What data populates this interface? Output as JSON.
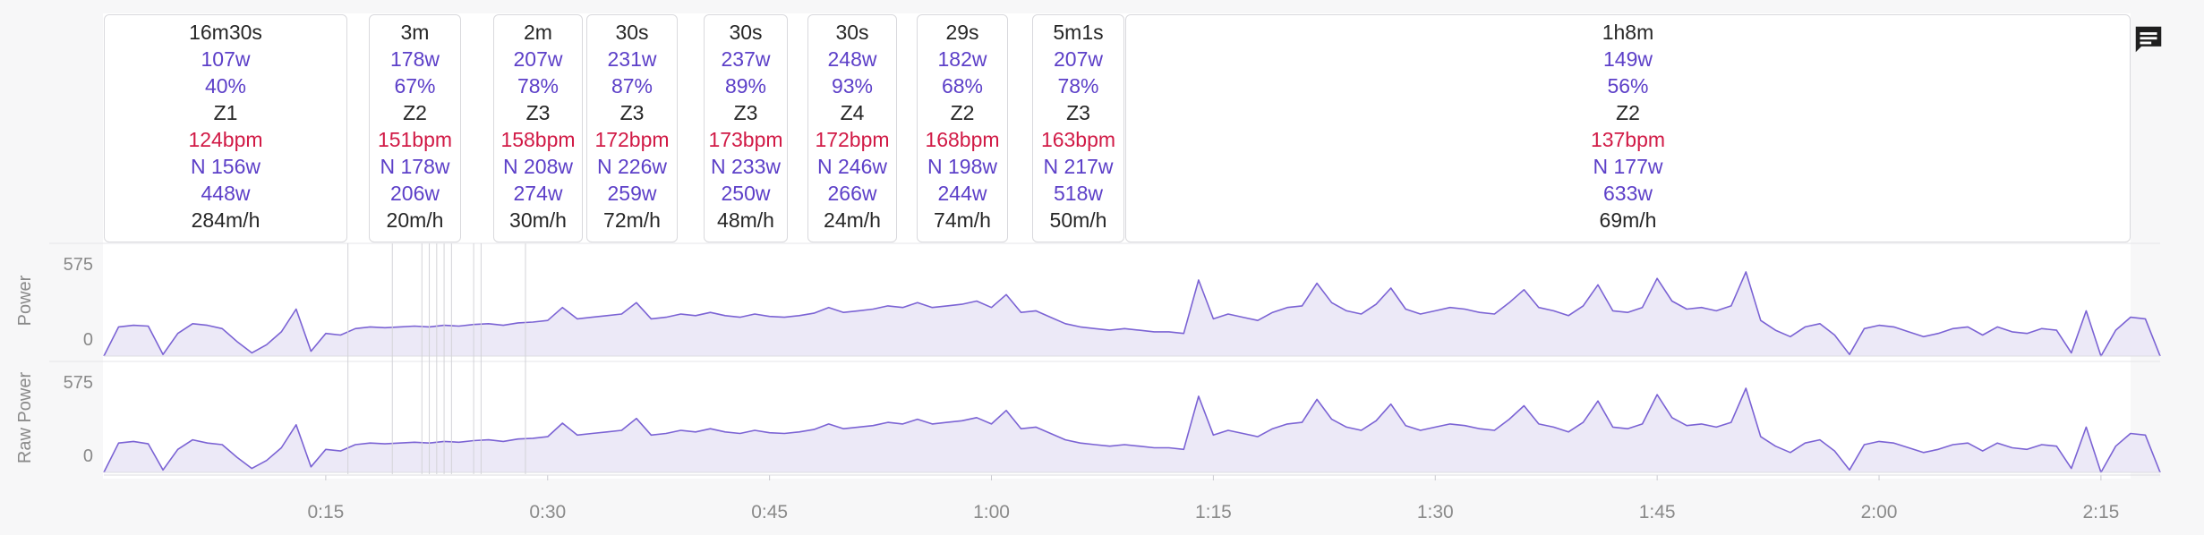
{
  "colors": {
    "line": "#7b63d4",
    "fill": "#ece9f7",
    "watts": "#5c3fc8",
    "heart_rate": "#d11a46",
    "text": "#262626",
    "axis_text": "#8a8a8a"
  },
  "comment_button": {
    "icon": "comment-icon"
  },
  "intervals": [
    {
      "duration": "16m30s",
      "avg_power": "107w",
      "percent_ftp": "40%",
      "zone": "Z1",
      "heart_rate": "124bpm",
      "normalized_power": "N 156w",
      "max_power": "448w",
      "climb_rate": "284m/h"
    },
    {
      "duration": "3m",
      "avg_power": "178w",
      "percent_ftp": "67%",
      "zone": "Z2",
      "heart_rate": "151bpm",
      "normalized_power": "N 178w",
      "max_power": "206w",
      "climb_rate": "20m/h"
    },
    {
      "duration": "2m",
      "avg_power": "207w",
      "percent_ftp": "78%",
      "zone": "Z3",
      "heart_rate": "158bpm",
      "normalized_power": "N 208w",
      "max_power": "274w",
      "climb_rate": "30m/h"
    },
    {
      "duration": "30s",
      "avg_power": "231w",
      "percent_ftp": "87%",
      "zone": "Z3",
      "heart_rate": "172bpm",
      "normalized_power": "N 226w",
      "max_power": "259w",
      "climb_rate": "72m/h"
    },
    {
      "duration": "30s",
      "avg_power": "237w",
      "percent_ftp": "89%",
      "zone": "Z3",
      "heart_rate": "173bpm",
      "normalized_power": "N 233w",
      "max_power": "250w",
      "climb_rate": "48m/h"
    },
    {
      "duration": "30s",
      "avg_power": "248w",
      "percent_ftp": "93%",
      "zone": "Z4",
      "heart_rate": "172bpm",
      "normalized_power": "N 246w",
      "max_power": "266w",
      "climb_rate": "24m/h"
    },
    {
      "duration": "29s",
      "avg_power": "182w",
      "percent_ftp": "68%",
      "zone": "Z2",
      "heart_rate": "168bpm",
      "normalized_power": "N 198w",
      "max_power": "244w",
      "climb_rate": "74m/h"
    },
    {
      "duration": "5m1s",
      "avg_power": "207w",
      "percent_ftp": "78%",
      "zone": "Z3",
      "heart_rate": "163bpm",
      "normalized_power": "N 217w",
      "max_power": "518w",
      "climb_rate": "50m/h"
    },
    {
      "duration": "1h8m",
      "avg_power": "149w",
      "percent_ftp": "56%",
      "zone": "Z2",
      "heart_rate": "137bpm",
      "normalized_power": "N 177w",
      "max_power": "633w",
      "climb_rate": "69m/h"
    }
  ],
  "chart_data": {
    "type": "line",
    "x_unit": "minutes",
    "xlim": [
      0,
      139
    ],
    "x_ticks": [
      "0:15",
      "0:30",
      "0:45",
      "1:00",
      "1:15",
      "1:30",
      "1:45",
      "2:00",
      "2:15"
    ],
    "interval_dividers": [
      16.5,
      19.5,
      21.5,
      22,
      22.5,
      23,
      23.5,
      25,
      25.5,
      28.5
    ],
    "series": [
      {
        "name": "Power",
        "ylim": [
          0,
          575
        ],
        "y_ticks": [
          "575",
          "0"
        ],
        "x": [
          0,
          1,
          2,
          3,
          4,
          5,
          6,
          7,
          8,
          9,
          10,
          11,
          12,
          13,
          14,
          15,
          16,
          17,
          18,
          19,
          20,
          21,
          22,
          23,
          24,
          25,
          26,
          27,
          28,
          29,
          30,
          31,
          32,
          33,
          34,
          35,
          36,
          37,
          38,
          39,
          40,
          41,
          42,
          43,
          44,
          45,
          46,
          47,
          48,
          49,
          50,
          51,
          52,
          53,
          54,
          55,
          56,
          57,
          58,
          59,
          60,
          61,
          62,
          63,
          64,
          65,
          66,
          67,
          68,
          69,
          70,
          71,
          72,
          73,
          74,
          75,
          76,
          77,
          78,
          79,
          80,
          81,
          82,
          83,
          84,
          85,
          86,
          87,
          88,
          89,
          90,
          91,
          92,
          93,
          94,
          95,
          96,
          97,
          98,
          99,
          100,
          101,
          102,
          103,
          104,
          105,
          106,
          107,
          108,
          109,
          110,
          111,
          112,
          113,
          114,
          115,
          116,
          117,
          118,
          119,
          120,
          121,
          122,
          123,
          124,
          125,
          126,
          127,
          128,
          129,
          130,
          131,
          132,
          133,
          134,
          135,
          136,
          137,
          138,
          139
        ],
        "values": [
          0,
          180,
          190,
          185,
          10,
          140,
          200,
          190,
          170,
          90,
          20,
          70,
          150,
          290,
          30,
          140,
          130,
          170,
          180,
          175,
          180,
          185,
          180,
          190,
          185,
          195,
          200,
          190,
          205,
          210,
          220,
          300,
          230,
          240,
          250,
          260,
          330,
          230,
          240,
          260,
          250,
          270,
          250,
          240,
          260,
          245,
          240,
          250,
          265,
          300,
          270,
          280,
          290,
          310,
          300,
          330,
          300,
          310,
          320,
          340,
          300,
          380,
          270,
          280,
          240,
          200,
          180,
          170,
          160,
          170,
          160,
          150,
          150,
          140,
          470,
          230,
          260,
          240,
          220,
          270,
          300,
          310,
          450,
          330,
          280,
          260,
          320,
          420,
          290,
          260,
          280,
          300,
          290,
          270,
          260,
          330,
          410,
          300,
          280,
          250,
          310,
          440,
          280,
          270,
          300,
          480,
          340,
          290,
          300,
          280,
          310,
          520,
          220,
          160,
          120,
          180,
          200,
          130,
          10,
          170,
          190,
          180,
          150,
          120,
          140,
          170,
          180,
          130,
          180,
          150,
          140,
          170,
          160,
          20,
          280,
          0,
          160,
          240,
          230,
          0
        ]
      },
      {
        "name": "Raw Power",
        "ylim": [
          0,
          575
        ],
        "y_ticks": [
          "575",
          "0"
        ],
        "x": [
          0,
          1,
          2,
          3,
          4,
          5,
          6,
          7,
          8,
          9,
          10,
          11,
          12,
          13,
          14,
          15,
          16,
          17,
          18,
          19,
          20,
          21,
          22,
          23,
          24,
          25,
          26,
          27,
          28,
          29,
          30,
          31,
          32,
          33,
          34,
          35,
          36,
          37,
          38,
          39,
          40,
          41,
          42,
          43,
          44,
          45,
          46,
          47,
          48,
          49,
          50,
          51,
          52,
          53,
          54,
          55,
          56,
          57,
          58,
          59,
          60,
          61,
          62,
          63,
          64,
          65,
          66,
          67,
          68,
          69,
          70,
          71,
          72,
          73,
          74,
          75,
          76,
          77,
          78,
          79,
          80,
          81,
          82,
          83,
          84,
          85,
          86,
          87,
          88,
          89,
          90,
          91,
          92,
          93,
          94,
          95,
          96,
          97,
          98,
          99,
          100,
          101,
          102,
          103,
          104,
          105,
          106,
          107,
          108,
          109,
          110,
          111,
          112,
          113,
          114,
          115,
          116,
          117,
          118,
          119,
          120,
          121,
          122,
          123,
          124,
          125,
          126,
          127,
          128,
          129,
          130,
          131,
          132,
          133,
          134,
          135,
          136,
          137,
          138,
          139
        ],
        "values": [
          0,
          185,
          195,
          180,
          15,
          145,
          205,
          185,
          175,
          95,
          25,
          75,
          155,
          300,
          35,
          145,
          135,
          175,
          185,
          180,
          185,
          190,
          185,
          195,
          190,
          200,
          205,
          195,
          210,
          215,
          225,
          310,
          235,
          245,
          255,
          265,
          340,
          235,
          245,
          265,
          255,
          275,
          255,
          245,
          265,
          250,
          245,
          255,
          270,
          305,
          275,
          285,
          295,
          315,
          305,
          335,
          305,
          315,
          325,
          345,
          305,
          390,
          275,
          285,
          245,
          205,
          185,
          175,
          165,
          175,
          165,
          155,
          155,
          145,
          480,
          235,
          265,
          245,
          225,
          275,
          305,
          315,
          460,
          335,
          285,
          265,
          325,
          430,
          295,
          265,
          285,
          305,
          295,
          275,
          265,
          335,
          420,
          305,
          285,
          255,
          315,
          450,
          285,
          275,
          305,
          490,
          345,
          295,
          305,
          285,
          315,
          530,
          225,
          165,
          125,
          185,
          205,
          135,
          15,
          175,
          195,
          185,
          155,
          125,
          145,
          175,
          185,
          135,
          185,
          155,
          145,
          175,
          165,
          25,
          285,
          0,
          165,
          245,
          235,
          0
        ]
      }
    ]
  }
}
